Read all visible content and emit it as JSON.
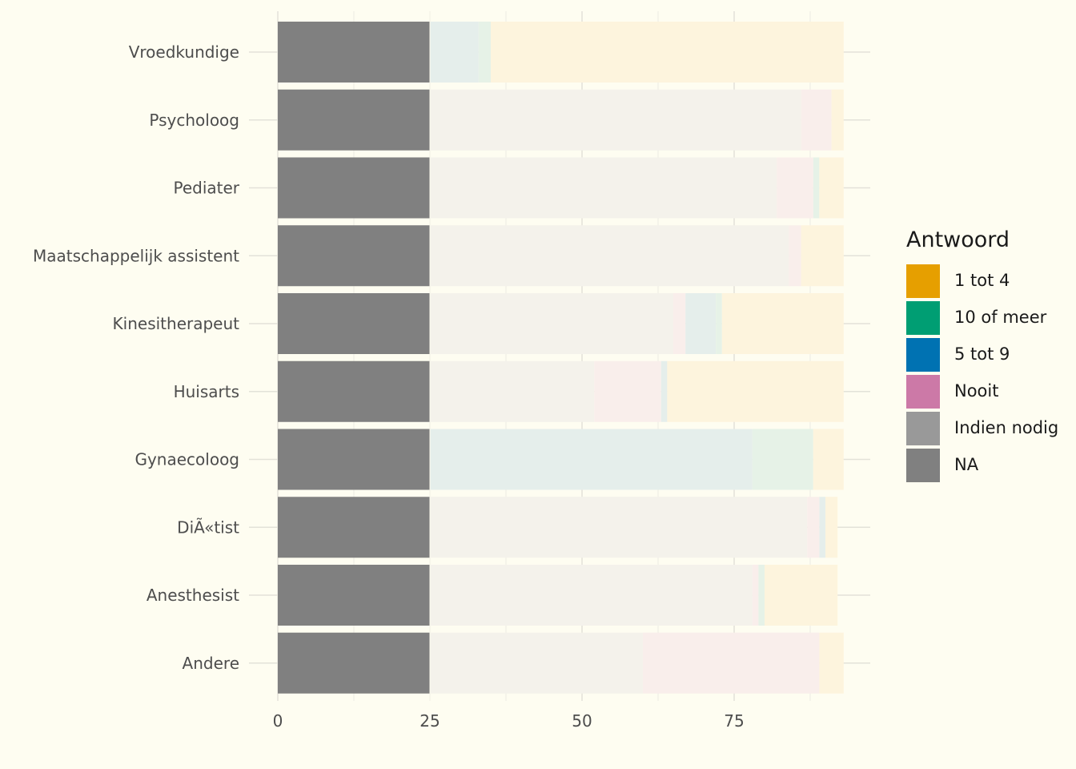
{
  "chart_data": {
    "type": "bar",
    "orientation": "horizontal",
    "stacked": true,
    "title": "",
    "xlabel": "",
    "ylabel": "",
    "xlim": [
      0,
      97
    ],
    "x_ticks": [
      0,
      25,
      50,
      75
    ],
    "grid": true,
    "legend_position": "right",
    "legend_title": "Antwoord",
    "categories": [
      "Vroedkundige",
      "Psycholoog",
      "Pediater",
      "Maatschappelijk assistent",
      "Kinesitherapeut",
      "Huisarts",
      "Gynaecoloog",
      "DiÃ«tist",
      "Anesthesist",
      "Andere"
    ],
    "series": [
      {
        "name": "NA",
        "color": "#808080",
        "faded_color": "#808080",
        "values": [
          25,
          25,
          25,
          25,
          25,
          25,
          25,
          25,
          25,
          25
        ]
      },
      {
        "name": "Indien nodig",
        "color": "#999999",
        "faded_color": "#f4f2eb",
        "values": [
          0,
          61,
          57,
          59,
          40,
          27,
          0,
          62,
          53,
          35
        ]
      },
      {
        "name": "Nooit",
        "color": "#cc79a7",
        "faded_color": "#f9eeeb",
        "values": [
          0,
          5,
          6,
          2,
          2,
          11,
          0,
          2,
          1,
          29
        ]
      },
      {
        "name": "5 tot 9",
        "color": "#0072b2",
        "faded_color": "#e5eeeb",
        "values": [
          8,
          0,
          0,
          0,
          5,
          1,
          53,
          1,
          0,
          0
        ]
      },
      {
        "name": "10 of meer",
        "color": "#009e73",
        "faded_color": "#e6f2e7",
        "values": [
          2,
          0,
          1,
          0,
          1,
          0,
          10,
          0,
          1,
          0
        ]
      },
      {
        "name": "1 tot 4",
        "color": "#e69f00",
        "faded_color": "#fdf4dd",
        "values": [
          58,
          2,
          4,
          7,
          20,
          29,
          5,
          2,
          12,
          4
        ]
      }
    ],
    "legend_order": [
      "1 tot 4",
      "10 of meer",
      "5 tot 9",
      "Nooit",
      "Indien nodig",
      "NA"
    ]
  }
}
